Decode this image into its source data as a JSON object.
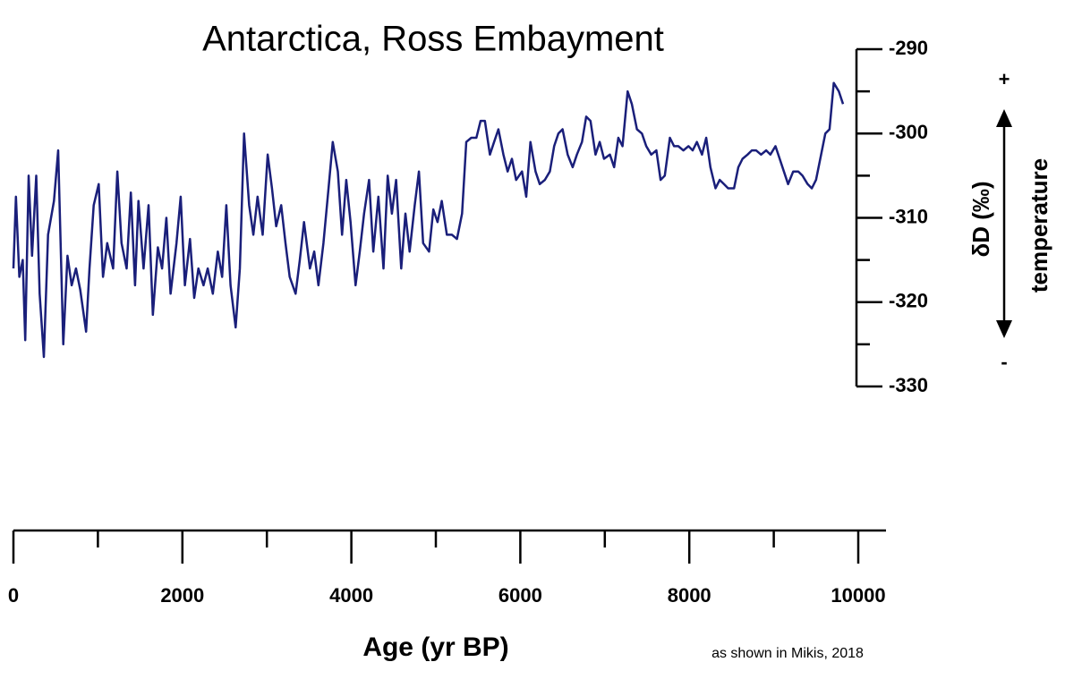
{
  "chart_data": {
    "type": "line",
    "title": "Antarctica, Ross Embayment",
    "x_label": "Age (yr BP)",
    "y_label": "δD (‰)",
    "annotations": {
      "arrow_label": "temperature",
      "plus": "+",
      "minus": "-",
      "source": "as shown in Mikis, 2018"
    },
    "xlim": [
      0,
      10000
    ],
    "xticks": [
      0,
      2000,
      4000,
      6000,
      8000,
      10000
    ],
    "xminorticks": [
      1000,
      3000,
      5000,
      7000,
      9000
    ],
    "ylim": [
      -330,
      -290
    ],
    "yticks": [
      -330,
      -320,
      -310,
      -300,
      -290
    ],
    "yminorticks": [
      -325,
      -315,
      -305,
      -295
    ],
    "series": [
      {
        "color": "#1a1f7a",
        "x": [
          0,
          30,
          70,
          110,
          140,
          180,
          220,
          270,
          310,
          360,
          410,
          480,
          530,
          590,
          640,
          690,
          740,
          790,
          860,
          900,
          950,
          1010,
          1060,
          1110,
          1180,
          1230,
          1280,
          1340,
          1390,
          1440,
          1480,
          1540,
          1600,
          1650,
          1710,
          1760,
          1810,
          1860,
          1930,
          1980,
          2030,
          2090,
          2140,
          2190,
          2250,
          2300,
          2360,
          2420,
          2470,
          2520,
          2570,
          2630,
          2680,
          2730,
          2790,
          2840,
          2890,
          2950,
          3010,
          3060,
          3110,
          3170,
          3220,
          3270,
          3340,
          3390,
          3440,
          3510,
          3560,
          3610,
          3670,
          3730,
          3780,
          3840,
          3890,
          3940,
          3990,
          4050,
          4100,
          4150,
          4210,
          4260,
          4320,
          4380,
          4430,
          4480,
          4530,
          4590,
          4640,
          4690,
          4750,
          4800,
          4850,
          4920,
          4970,
          5020,
          5070,
          5130,
          5190,
          5250,
          5310,
          5360,
          5420,
          5480,
          5530,
          5580,
          5640,
          5690,
          5740,
          5800,
          5850,
          5900,
          5950,
          6020,
          6070,
          6120,
          6180,
          6230,
          6290,
          6350,
          6400,
          6450,
          6500,
          6560,
          6620,
          6670,
          6730,
          6780,
          6830,
          6890,
          6940,
          6990,
          7060,
          7110,
          7160,
          7210,
          7270,
          7320,
          7380,
          7440,
          7490,
          7550,
          7610,
          7660,
          7710,
          7770,
          7820,
          7870,
          7930,
          7990,
          8040,
          8090,
          8150,
          8200,
          8250,
          8310,
          8360,
          8410,
          8460,
          8530,
          8580,
          8630,
          8690,
          8740,
          8790,
          8850,
          8910,
          8960,
          9020,
          9070,
          9120,
          9170,
          9230,
          9290,
          9340,
          9400,
          9450,
          9500,
          9560,
          9610,
          9660,
          9710,
          9770,
          9820
        ],
        "values": [
          -316,
          -307.5,
          -317,
          -315,
          -324.5,
          -305,
          -314.5,
          -305,
          -319,
          -326.5,
          -312,
          -308,
          -302,
          -325,
          -314.5,
          -318,
          -316,
          -318.5,
          -323.5,
          -316,
          -308.5,
          -306,
          -317,
          -313,
          -316,
          -304.5,
          -313,
          -316,
          -307,
          -318,
          -308,
          -316,
          -308.5,
          -321.5,
          -313.5,
          -316,
          -310,
          -319,
          -313,
          -307.5,
          -318,
          -312.5,
          -319.5,
          -316,
          -318,
          -316,
          -319,
          -314,
          -317,
          -308.5,
          -318,
          -323,
          -316,
          -300,
          -308.5,
          -312,
          -307.5,
          -312,
          -302.5,
          -306.5,
          -311,
          -308.5,
          -313,
          -317,
          -319,
          -315,
          -310.5,
          -316,
          -314,
          -318,
          -313,
          -306.5,
          -301,
          -304.5,
          -312,
          -305.5,
          -310.5,
          -318,
          -314,
          -309.5,
          -305.5,
          -314,
          -307.5,
          -316,
          -305,
          -309.5,
          -305.5,
          -316,
          -309.5,
          -314,
          -308.5,
          -304.5,
          -313,
          -314,
          -309,
          -310.5,
          -308,
          -312,
          -312,
          -312.5,
          -309.5,
          -301,
          -300.5,
          -300.5,
          -298.5,
          -298.5,
          -302.5,
          -301,
          -299.5,
          -302.5,
          -304.5,
          -303,
          -305.5,
          -304.5,
          -307.5,
          -301,
          -304.5,
          -306,
          -305.5,
          -304.5,
          -301.5,
          -300,
          -299.5,
          -302.5,
          -304,
          -302.5,
          -301,
          -298,
          -298.5,
          -302.5,
          -301,
          -303,
          -302.5,
          -304,
          -300.5,
          -301.5,
          -295,
          -296.5,
          -299.5,
          -300,
          -301.5,
          -302.5,
          -302,
          -305.5,
          -305,
          -300.5,
          -301.5,
          -301.5,
          -302,
          -301.5,
          -302,
          -301,
          -302.5,
          -300.5,
          -304,
          -306.5,
          -305.5,
          -306,
          -306.5,
          -306.5,
          -304,
          -303,
          -302.5,
          -302,
          -302,
          -302.5,
          -302,
          -302.5,
          -301.5,
          -303,
          -304.5,
          -306,
          -304.5,
          -304.5,
          -305,
          -306,
          -306.5,
          -305.5,
          -302.5,
          -300,
          -299.5,
          -294,
          -295,
          -296.5
        ]
      }
    ]
  }
}
